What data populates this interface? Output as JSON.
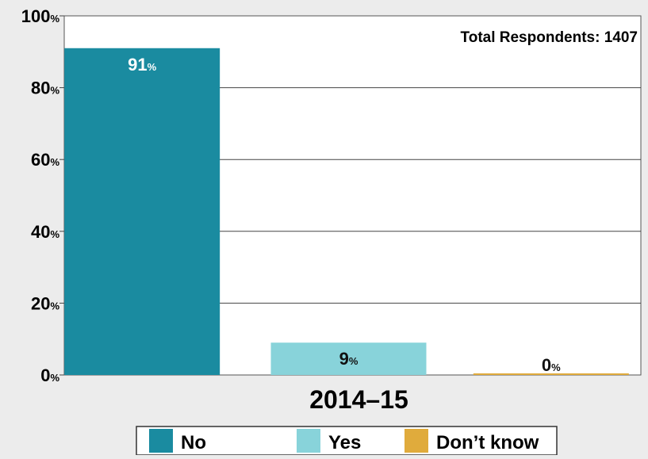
{
  "chart_data": {
    "type": "bar",
    "title": "",
    "annotation": "Total Respondents: 1407",
    "xlabel": "2014–15",
    "ylabel": "",
    "ylim": [
      0,
      100
    ],
    "yticks": [
      0,
      20,
      40,
      60,
      80,
      100
    ],
    "ytick_suffix": "%",
    "grid": true,
    "legend_position": "bottom",
    "series": [
      {
        "name": "No",
        "value": 91,
        "label": "91",
        "color": "#1a8ba0",
        "label_color": "#ffffff",
        "label_position": "inside-top"
      },
      {
        "name": "Yes",
        "value": 9,
        "label": "9",
        "color": "#88d3da",
        "label_color": "#111111",
        "label_position": "inside-top"
      },
      {
        "name": "Don’t know",
        "value": 0,
        "label": "0",
        "color": "#e0ab3c",
        "label_color": "#111111",
        "label_position": "above"
      }
    ]
  }
}
